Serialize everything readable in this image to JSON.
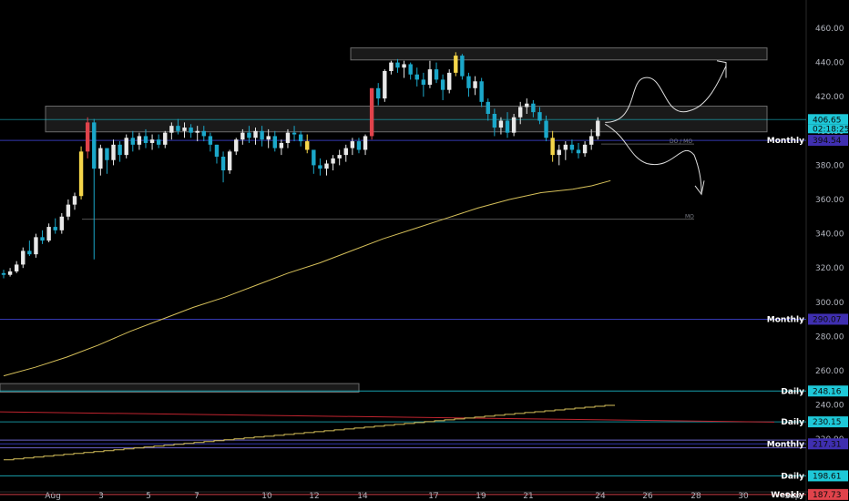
{
  "chart_data": {
    "type": "candlestick",
    "x_tick_labels": [
      "Aug",
      "3",
      "5",
      "7",
      "10",
      "12",
      "14",
      "17",
      "19",
      "21",
      "24",
      "26",
      "28",
      "30",
      "Sep"
    ],
    "y_tick_labels": [
      "460.00",
      "440.00",
      "420.00",
      "400.00",
      "380.00",
      "360.00",
      "340.00",
      "320.00",
      "300.00",
      "280.00",
      "260.00",
      "240.00",
      "220.00"
    ],
    "ylim": [
      178,
      475
    ],
    "colors": {
      "up": "#e8e8e8",
      "down": "#1ba7c9",
      "highlight_up": "#f5d64a",
      "highlight_big": "#e0434b",
      "moving_average": "#d6c05a",
      "hline": "#3a3ec4",
      "zone_fill": "#1e1e1e",
      "zone_border": "#6b6b6b",
      "stair_line": "#d6c05a",
      "diag_line": "#c0242f"
    },
    "price_labels": {
      "current_price": "406.65",
      "countdown": "02:18:25"
    },
    "levels": [
      {
        "name": "Monthly",
        "value": "394.54",
        "color": "#3f2fb0",
        "text_color": "#ffffff"
      },
      {
        "name": "Monthly",
        "value": "290.07",
        "color": "#3f2fb0",
        "text_color": "#ffffff"
      },
      {
        "name": "Daily",
        "value": "248.16",
        "color": "#1ec8d8",
        "text_color": "#0b0b0b"
      },
      {
        "name": "Daily",
        "value": "230.15",
        "color": "#1ec8d8",
        "text_color": "#0b0b0b"
      },
      {
        "name": "Monthly",
        "value": "217.31",
        "color": "#3f2fb0",
        "text_color": "#ffffff"
      },
      {
        "name": "Daily",
        "value": "198.61",
        "color": "#1ec8d8",
        "text_color": "#0b0b0b"
      },
      {
        "name": "Weekly",
        "value": "187.73",
        "color": "#e0434b",
        "text_color": "#ffffff"
      }
    ],
    "annotations": {
      "small_label_1": "DO / MO",
      "small_label_2": "MO"
    },
    "candles": [
      [
        317,
        319,
        314,
        316
      ],
      [
        316,
        320,
        315,
        318
      ],
      [
        318,
        324,
        317,
        322
      ],
      [
        322,
        332,
        320,
        330
      ],
      [
        330,
        336,
        327,
        328
      ],
      [
        328,
        340,
        326,
        338
      ],
      [
        338,
        342,
        334,
        336
      ],
      [
        336,
        346,
        335,
        344
      ],
      [
        344,
        349,
        340,
        342
      ],
      [
        342,
        352,
        340,
        350
      ],
      [
        350,
        360,
        348,
        357
      ],
      [
        357,
        364,
        354,
        362
      ],
      [
        362,
        391,
        360,
        388
      ],
      [
        388,
        408,
        384,
        405
      ],
      [
        405,
        407,
        325,
        378
      ],
      [
        378,
        392,
        374,
        390
      ],
      [
        390,
        388,
        375,
        383
      ],
      [
        383,
        395,
        380,
        392
      ],
      [
        392,
        394,
        382,
        386
      ],
      [
        386,
        398,
        384,
        396
      ],
      [
        396,
        400,
        388,
        392
      ],
      [
        392,
        399,
        389,
        397
      ],
      [
        397,
        401,
        390,
        393
      ],
      [
        393,
        398,
        389,
        395
      ],
      [
        395,
        398,
        390,
        392
      ],
      [
        392,
        400,
        390,
        399
      ],
      [
        399,
        405,
        395,
        403
      ],
      [
        403,
        407,
        398,
        400
      ],
      [
        400,
        405,
        396,
        402
      ],
      [
        402,
        404,
        396,
        399
      ],
      [
        399,
        403,
        394,
        400
      ],
      [
        400,
        403,
        394,
        397
      ],
      [
        397,
        399,
        388,
        392
      ],
      [
        392,
        392,
        381,
        385
      ],
      [
        385,
        388,
        370,
        377
      ],
      [
        377,
        389,
        375,
        388
      ],
      [
        388,
        396,
        386,
        395
      ],
      [
        395,
        401,
        392,
        399
      ],
      [
        399,
        403,
        393,
        396
      ],
      [
        396,
        402,
        392,
        400
      ],
      [
        400,
        403,
        391,
        395
      ],
      [
        395,
        401,
        390,
        397
      ],
      [
        397,
        400,
        388,
        390
      ],
      [
        390,
        395,
        386,
        393
      ],
      [
        393,
        401,
        390,
        399
      ],
      [
        399,
        403,
        394,
        398
      ],
      [
        398,
        400,
        391,
        394
      ],
      [
        394,
        398,
        387,
        389
      ],
      [
        389,
        389,
        375,
        380
      ],
      [
        380,
        384,
        374,
        378
      ],
      [
        378,
        383,
        374,
        381
      ],
      [
        381,
        386,
        377,
        384
      ],
      [
        384,
        389,
        380,
        386
      ],
      [
        386,
        392,
        382,
        390
      ],
      [
        390,
        396,
        386,
        394
      ],
      [
        394,
        396,
        387,
        389
      ],
      [
        389,
        398,
        386,
        397
      ],
      [
        397,
        425,
        395,
        425
      ],
      [
        425,
        428,
        415,
        419
      ],
      [
        419,
        436,
        417,
        435
      ],
      [
        435,
        441,
        433,
        440
      ],
      [
        440,
        442,
        434,
        437
      ],
      [
        437,
        441,
        431,
        439
      ],
      [
        439,
        440,
        430,
        433
      ],
      [
        433,
        437,
        426,
        430
      ],
      [
        430,
        434,
        420,
        427
      ],
      [
        427,
        441,
        425,
        436
      ],
      [
        436,
        440,
        428,
        430
      ],
      [
        430,
        433,
        418,
        424
      ],
      [
        424,
        436,
        422,
        434
      ],
      [
        434,
        446,
        432,
        444
      ],
      [
        444,
        445,
        430,
        432
      ],
      [
        432,
        434,
        420,
        425
      ],
      [
        425,
        432,
        421,
        429
      ],
      [
        429,
        431,
        414,
        417
      ],
      [
        417,
        419,
        406,
        410
      ],
      [
        410,
        413,
        397,
        402
      ],
      [
        402,
        408,
        398,
        406
      ],
      [
        406,
        411,
        396,
        399
      ],
      [
        399,
        410,
        397,
        408
      ],
      [
        408,
        417,
        404,
        414
      ],
      [
        414,
        419,
        410,
        416
      ],
      [
        416,
        418,
        408,
        411
      ],
      [
        411,
        414,
        404,
        406
      ],
      [
        406,
        409,
        394,
        396
      ],
      [
        396,
        400,
        382,
        386
      ],
      [
        386,
        392,
        380,
        389
      ],
      [
        389,
        394,
        383,
        392
      ],
      [
        392,
        395,
        387,
        389
      ],
      [
        389,
        393,
        384,
        387
      ],
      [
        387,
        394,
        385,
        392
      ],
      [
        392,
        401,
        389,
        397
      ],
      [
        397,
        408,
        395,
        406
      ]
    ],
    "moving_average": [
      [
        0,
        257
      ],
      [
        10,
        262
      ],
      [
        20,
        268
      ],
      [
        30,
        275
      ],
      [
        40,
        283
      ],
      [
        50,
        290
      ],
      [
        60,
        297
      ],
      [
        70,
        303
      ],
      [
        80,
        310
      ],
      [
        90,
        317
      ],
      [
        100,
        323
      ],
      [
        110,
        330
      ],
      [
        120,
        337
      ],
      [
        130,
        343
      ],
      [
        140,
        349
      ],
      [
        150,
        355
      ],
      [
        160,
        360
      ],
      [
        170,
        364
      ],
      [
        180,
        366
      ],
      [
        186,
        368
      ],
      [
        192,
        371
      ]
    ]
  }
}
